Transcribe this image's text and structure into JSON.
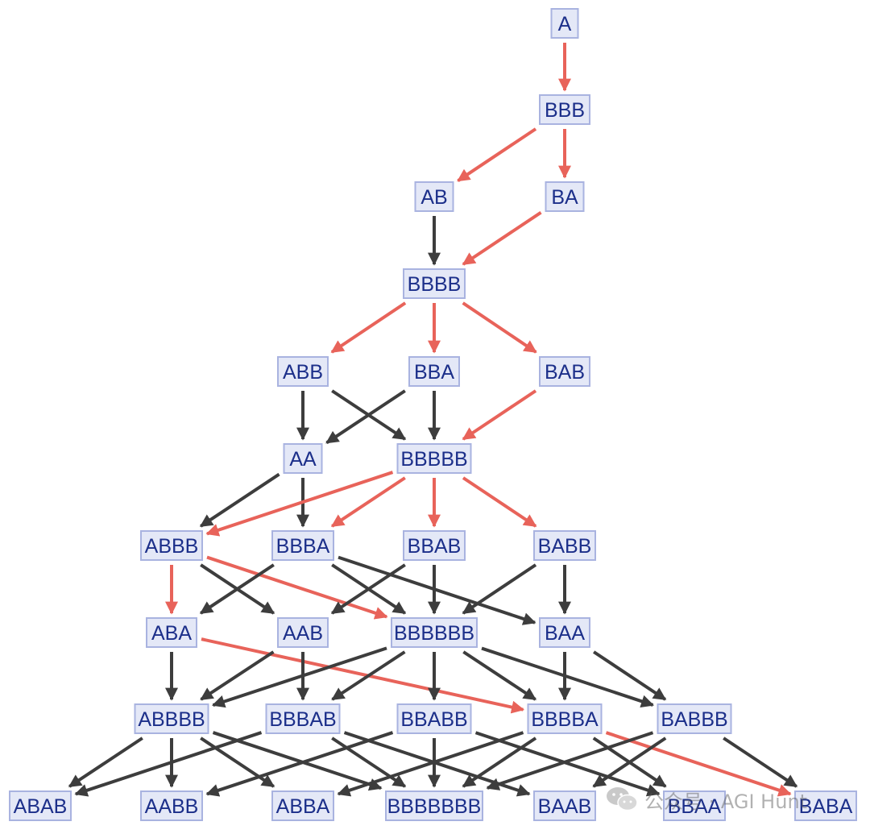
{
  "nodes": [
    {
      "id": "A",
      "label": "A"
    },
    {
      "id": "BBB",
      "label": "BBB"
    },
    {
      "id": "AB",
      "label": "AB"
    },
    {
      "id": "BA",
      "label": "BA"
    },
    {
      "id": "BBBB",
      "label": "BBBB"
    },
    {
      "id": "ABB",
      "label": "ABB"
    },
    {
      "id": "BBA",
      "label": "BBA"
    },
    {
      "id": "BAB",
      "label": "BAB"
    },
    {
      "id": "AA",
      "label": "AA"
    },
    {
      "id": "BBBBB",
      "label": "BBBBB"
    },
    {
      "id": "ABBB",
      "label": "ABBB"
    },
    {
      "id": "BBBA",
      "label": "BBBA"
    },
    {
      "id": "BBAB",
      "label": "BBAB"
    },
    {
      "id": "BABB",
      "label": "BABB"
    },
    {
      "id": "ABA",
      "label": "ABA"
    },
    {
      "id": "AAB",
      "label": "AAB"
    },
    {
      "id": "BBBBBB",
      "label": "BBBBBB"
    },
    {
      "id": "BAA",
      "label": "BAA"
    },
    {
      "id": "ABBBB",
      "label": "ABBBB"
    },
    {
      "id": "BBBAB",
      "label": "BBBAB"
    },
    {
      "id": "BBABB",
      "label": "BBABB"
    },
    {
      "id": "BBBBA",
      "label": "BBBBA"
    },
    {
      "id": "BABBB",
      "label": "BABBB"
    },
    {
      "id": "ABAB",
      "label": "ABAB"
    },
    {
      "id": "AABB",
      "label": "AABB"
    },
    {
      "id": "ABBA",
      "label": "ABBA"
    },
    {
      "id": "BBBBBBB",
      "label": "BBBBBBB"
    },
    {
      "id": "BAAB",
      "label": "BAAB"
    },
    {
      "id": "BBAA",
      "label": "BBAA"
    },
    {
      "id": "BABA",
      "label": "BABA"
    }
  ],
  "edges": [
    {
      "from": "A",
      "to": "BBB",
      "color": "red"
    },
    {
      "from": "BBB",
      "to": "AB",
      "color": "red"
    },
    {
      "from": "BBB",
      "to": "BA",
      "color": "red"
    },
    {
      "from": "AB",
      "to": "BBBB",
      "color": "black"
    },
    {
      "from": "BA",
      "to": "BBBB",
      "color": "red"
    },
    {
      "from": "BBBB",
      "to": "ABB",
      "color": "red"
    },
    {
      "from": "BBBB",
      "to": "BBA",
      "color": "red"
    },
    {
      "from": "BBBB",
      "to": "BAB",
      "color": "red"
    },
    {
      "from": "ABB",
      "to": "AA",
      "color": "black"
    },
    {
      "from": "ABB",
      "to": "BBBBB",
      "color": "black"
    },
    {
      "from": "BBA",
      "to": "AA",
      "color": "black"
    },
    {
      "from": "BBA",
      "to": "BBBBB",
      "color": "black"
    },
    {
      "from": "BAB",
      "to": "BBBBB",
      "color": "red"
    },
    {
      "from": "AA",
      "to": "ABBB",
      "color": "black"
    },
    {
      "from": "AA",
      "to": "BBBA",
      "color": "black"
    },
    {
      "from": "BBBBB",
      "to": "ABBB",
      "color": "red"
    },
    {
      "from": "BBBBB",
      "to": "BBBA",
      "color": "red"
    },
    {
      "from": "BBBBB",
      "to": "BBAB",
      "color": "red"
    },
    {
      "from": "BBBBB",
      "to": "BABB",
      "color": "red"
    },
    {
      "from": "ABBB",
      "to": "ABA",
      "color": "red"
    },
    {
      "from": "ABBB",
      "to": "AAB",
      "color": "black"
    },
    {
      "from": "ABBB",
      "to": "BBBBBB",
      "color": "red"
    },
    {
      "from": "BBBA",
      "to": "ABA",
      "color": "black"
    },
    {
      "from": "BBBA",
      "to": "BBBBBB",
      "color": "black"
    },
    {
      "from": "BBBA",
      "to": "BAA",
      "color": "black"
    },
    {
      "from": "BBAB",
      "to": "AAB",
      "color": "black"
    },
    {
      "from": "BBAB",
      "to": "BBBBBB",
      "color": "black"
    },
    {
      "from": "BABB",
      "to": "BBBBBB",
      "color": "black"
    },
    {
      "from": "BABB",
      "to": "BAA",
      "color": "black"
    },
    {
      "from": "ABA",
      "to": "ABBBB",
      "color": "black"
    },
    {
      "from": "ABA",
      "to": "BBBBA",
      "color": "red"
    },
    {
      "from": "AAB",
      "to": "ABBBB",
      "color": "black"
    },
    {
      "from": "AAB",
      "to": "BBBAB",
      "color": "black"
    },
    {
      "from": "BBBBBB",
      "to": "ABBBB",
      "color": "black"
    },
    {
      "from": "BBBBBB",
      "to": "BBBAB",
      "color": "black"
    },
    {
      "from": "BBBBBB",
      "to": "BBABB",
      "color": "black"
    },
    {
      "from": "BBBBBB",
      "to": "BBBBA",
      "color": "black"
    },
    {
      "from": "BBBBBB",
      "to": "BABBB",
      "color": "black"
    },
    {
      "from": "BAA",
      "to": "BBBBA",
      "color": "black"
    },
    {
      "from": "BAA",
      "to": "BABBB",
      "color": "black"
    },
    {
      "from": "ABBBB",
      "to": "ABAB",
      "color": "black"
    },
    {
      "from": "ABBBB",
      "to": "AABB",
      "color": "black"
    },
    {
      "from": "ABBBB",
      "to": "ABBA",
      "color": "black"
    },
    {
      "from": "ABBBB",
      "to": "BBBBBBB",
      "color": "black"
    },
    {
      "from": "BBBAB",
      "to": "ABAB",
      "color": "black"
    },
    {
      "from": "BBBAB",
      "to": "BBBBBBB",
      "color": "black"
    },
    {
      "from": "BBBAB",
      "to": "BAAB",
      "color": "black"
    },
    {
      "from": "BBABB",
      "to": "AABB",
      "color": "black"
    },
    {
      "from": "BBABB",
      "to": "BBBBBBB",
      "color": "black"
    },
    {
      "from": "BBABB",
      "to": "BBAA",
      "color": "black"
    },
    {
      "from": "BBBBA",
      "to": "ABBA",
      "color": "black"
    },
    {
      "from": "BBBBA",
      "to": "BBBBBBB",
      "color": "black"
    },
    {
      "from": "BBBBA",
      "to": "BBAA",
      "color": "black"
    },
    {
      "from": "BBBBA",
      "to": "BABA",
      "color": "red"
    },
    {
      "from": "BABBB",
      "to": "BBBBBBB",
      "color": "black"
    },
    {
      "from": "BABBB",
      "to": "BAAB",
      "color": "black"
    },
    {
      "from": "BABBB",
      "to": "BABA",
      "color": "black"
    }
  ],
  "colors": {
    "red_edge": "#e8635a",
    "black_edge": "#3d3d3d",
    "node_fill": "#e4e8f7",
    "node_border": "#a9b3e0",
    "node_text": "#1c2f8a"
  },
  "watermark": {
    "icon": "wechat-icon",
    "text": "公众号 · AGI Hunt"
  }
}
